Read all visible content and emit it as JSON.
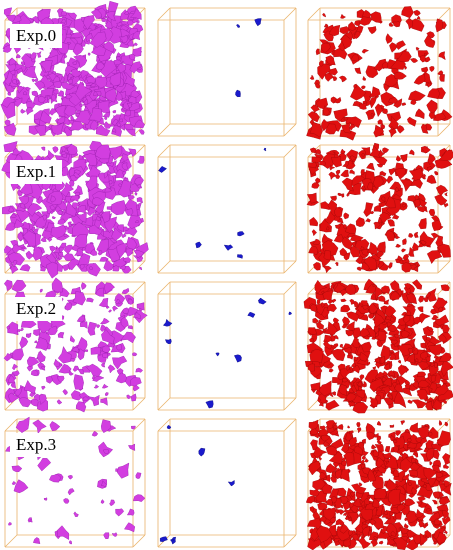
{
  "panels": [
    {
      "label": "Exp.0"
    },
    {
      "label": "Exp.1"
    },
    {
      "label": "Exp.2"
    },
    {
      "label": "Exp.3"
    }
  ]
}
